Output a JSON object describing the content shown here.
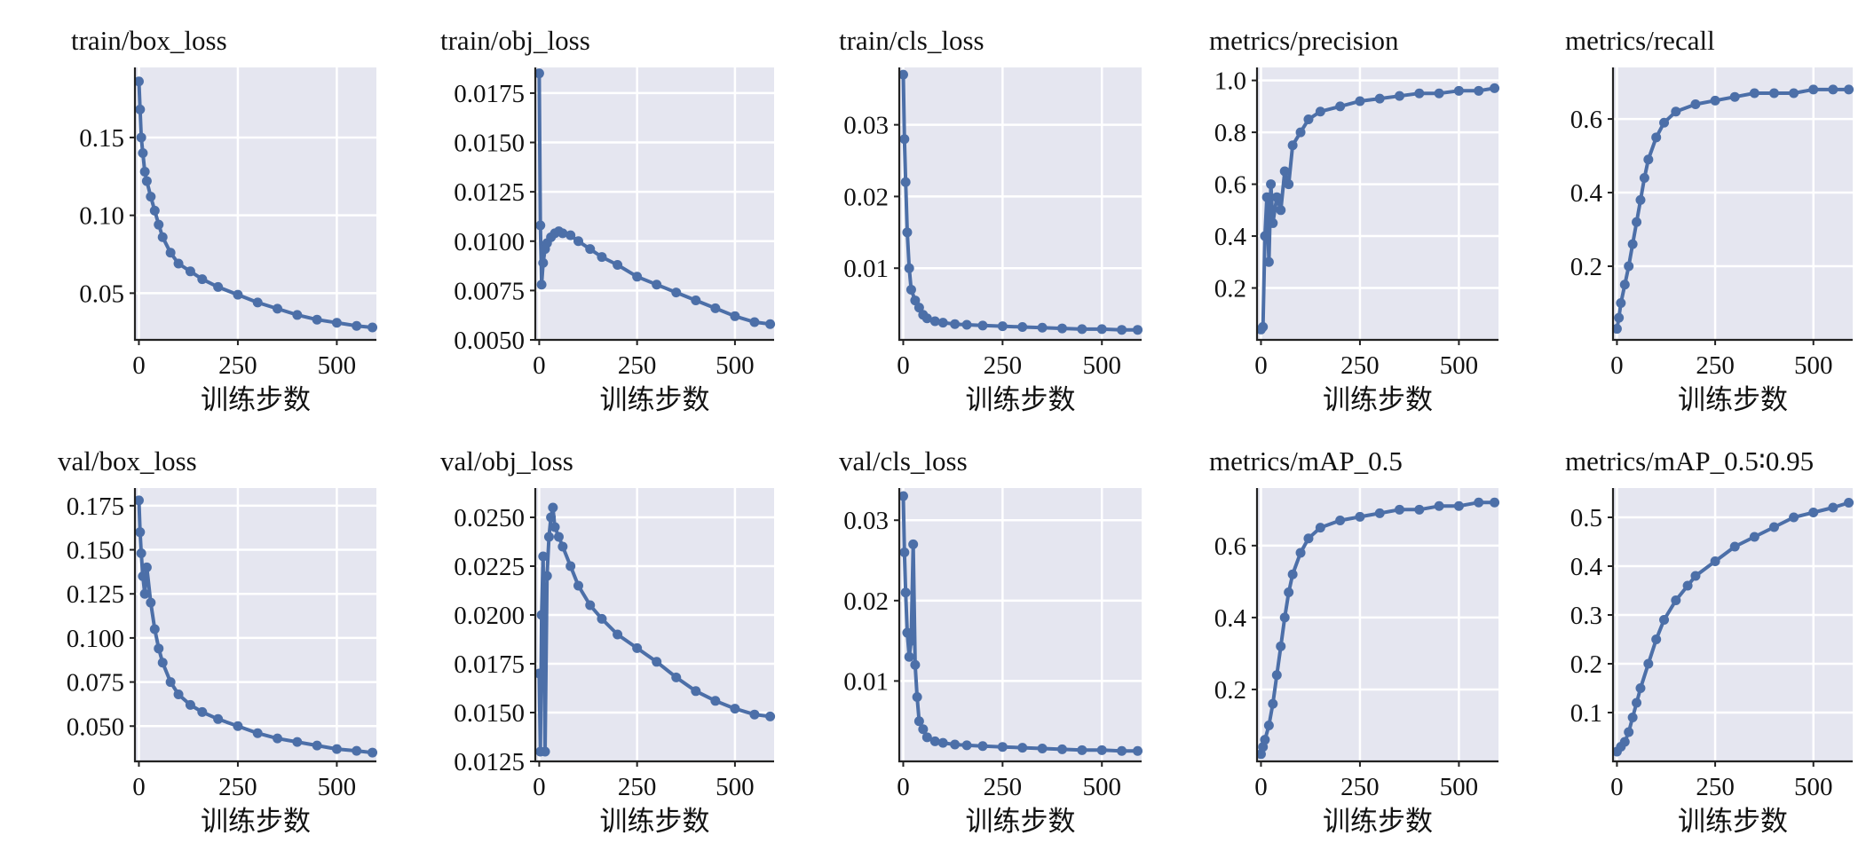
{
  "figure": {
    "series_color": "#4c6fa8",
    "plot_bg": "#e5e6f0",
    "grid_color": "#ffffff"
  },
  "chart_data": [
    {
      "type": "line",
      "title": "train/box_loss",
      "xlabel": "训练步数",
      "ylabel": "",
      "xlim": [
        -10,
        600
      ],
      "ylim": [
        0.02,
        0.195
      ],
      "xticks": [
        0,
        250,
        500
      ],
      "xtick_labels": [
        "0",
        "250",
        "500"
      ],
      "yticks": [
        0.05,
        0.1,
        0.15
      ],
      "ytick_labels": [
        "0.05",
        "0.10",
        "0.15"
      ],
      "grid": true,
      "series": [
        {
          "x": [
            0,
            3,
            6,
            10,
            15,
            20,
            30,
            40,
            50,
            60,
            80,
            100,
            130,
            160,
            200,
            250,
            300,
            350,
            400,
            450,
            500,
            550,
            590
          ],
          "y": [
            0.186,
            0.168,
            0.15,
            0.14,
            0.128,
            0.122,
            0.112,
            0.103,
            0.094,
            0.086,
            0.076,
            0.069,
            0.064,
            0.059,
            0.054,
            0.049,
            0.044,
            0.04,
            0.036,
            0.033,
            0.031,
            0.029,
            0.028
          ]
        }
      ]
    },
    {
      "type": "line",
      "title": "train/obj_loss",
      "xlabel": "训练步数",
      "ylabel": "",
      "xlim": [
        -10,
        600
      ],
      "ylim": [
        0.005,
        0.0188
      ],
      "xticks": [
        0,
        250,
        500
      ],
      "xtick_labels": [
        "0",
        "250",
        "500"
      ],
      "yticks": [
        0.005,
        0.0075,
        0.01,
        0.0125,
        0.015,
        0.0175
      ],
      "ytick_labels": [
        "0.0050",
        "0.0075",
        "0.0100",
        "0.0125",
        "0.0150",
        "0.0175"
      ],
      "grid": true,
      "series": [
        {
          "x": [
            0,
            3,
            6,
            10,
            15,
            20,
            30,
            40,
            50,
            60,
            80,
            100,
            130,
            160,
            200,
            250,
            300,
            350,
            400,
            450,
            500,
            550,
            590
          ],
          "y": [
            0.0185,
            0.0108,
            0.0078,
            0.0089,
            0.0096,
            0.0099,
            0.0102,
            0.0104,
            0.0105,
            0.0104,
            0.0103,
            0.01,
            0.0096,
            0.0092,
            0.0088,
            0.0082,
            0.0078,
            0.0074,
            0.007,
            0.0066,
            0.0062,
            0.0059,
            0.0058
          ]
        }
      ]
    },
    {
      "type": "line",
      "title": "train/cls_loss",
      "xlabel": "训练步数",
      "ylabel": "",
      "xlim": [
        -10,
        600
      ],
      "ylim": [
        0.0,
        0.038
      ],
      "xticks": [
        0,
        250,
        500
      ],
      "xtick_labels": [
        "0",
        "250",
        "500"
      ],
      "yticks": [
        0.01,
        0.02,
        0.03
      ],
      "ytick_labels": [
        "0.01",
        "0.02",
        "0.03"
      ],
      "grid": true,
      "series": [
        {
          "x": [
            0,
            3,
            6,
            10,
            15,
            20,
            30,
            40,
            50,
            60,
            80,
            100,
            130,
            160,
            200,
            250,
            300,
            350,
            400,
            450,
            500,
            550,
            590
          ],
          "y": [
            0.037,
            0.028,
            0.022,
            0.015,
            0.01,
            0.007,
            0.0055,
            0.0045,
            0.0035,
            0.003,
            0.0026,
            0.0024,
            0.0022,
            0.0021,
            0.002,
            0.0019,
            0.0018,
            0.0017,
            0.0016,
            0.0015,
            0.0015,
            0.0014,
            0.0014
          ]
        }
      ]
    },
    {
      "type": "line",
      "title": "metrics/precision",
      "xlabel": "训练步数",
      "ylabel": "",
      "xlim": [
        -10,
        600
      ],
      "ylim": [
        0.0,
        1.05
      ],
      "xticks": [
        0,
        250,
        500
      ],
      "xtick_labels": [
        "0",
        "250",
        "500"
      ],
      "yticks": [
        0.2,
        0.4,
        0.6,
        0.8,
        1.0
      ],
      "ytick_labels": [
        "0.2",
        "0.4",
        "0.6",
        "0.8",
        "1.0"
      ],
      "grid": true,
      "series": [
        {
          "x": [
            0,
            5,
            10,
            15,
            20,
            25,
            30,
            40,
            50,
            60,
            70,
            80,
            100,
            120,
            150,
            200,
            250,
            300,
            350,
            400,
            450,
            500,
            550,
            590
          ],
          "y": [
            0.04,
            0.05,
            0.4,
            0.55,
            0.3,
            0.6,
            0.45,
            0.55,
            0.5,
            0.65,
            0.6,
            0.75,
            0.8,
            0.85,
            0.88,
            0.9,
            0.92,
            0.93,
            0.94,
            0.95,
            0.95,
            0.96,
            0.96,
            0.97
          ]
        }
      ]
    },
    {
      "type": "line",
      "title": "metrics/recall",
      "xlabel": "训练步数",
      "ylabel": "",
      "xlim": [
        -10,
        600
      ],
      "ylim": [
        0.0,
        0.74
      ],
      "xticks": [
        0,
        250,
        500
      ],
      "xtick_labels": [
        "0",
        "250",
        "500"
      ],
      "yticks": [
        0.2,
        0.4,
        0.6
      ],
      "ytick_labels": [
        "0.2",
        "0.4",
        "0.6"
      ],
      "grid": true,
      "series": [
        {
          "x": [
            0,
            5,
            10,
            20,
            30,
            40,
            50,
            60,
            70,
            80,
            100,
            120,
            150,
            200,
            250,
            300,
            350,
            400,
            450,
            500,
            550,
            590
          ],
          "y": [
            0.03,
            0.06,
            0.1,
            0.15,
            0.2,
            0.26,
            0.32,
            0.38,
            0.44,
            0.49,
            0.55,
            0.59,
            0.62,
            0.64,
            0.65,
            0.66,
            0.67,
            0.67,
            0.67,
            0.68,
            0.68,
            0.68
          ]
        }
      ]
    },
    {
      "type": "line",
      "title": "val/box_loss",
      "xlabel": "训练步数",
      "ylabel": "",
      "xlim": [
        -10,
        600
      ],
      "ylim": [
        0.03,
        0.185
      ],
      "xticks": [
        0,
        250,
        500
      ],
      "xtick_labels": [
        "0",
        "250",
        "500"
      ],
      "yticks": [
        0.05,
        0.075,
        0.1,
        0.125,
        0.15,
        0.175
      ],
      "ytick_labels": [
        "0.050",
        "0.075",
        "0.100",
        "0.125",
        "0.150",
        "0.175"
      ],
      "grid": true,
      "series": [
        {
          "x": [
            0,
            3,
            6,
            10,
            15,
            20,
            30,
            40,
            50,
            60,
            80,
            100,
            130,
            160,
            200,
            250,
            300,
            350,
            400,
            450,
            500,
            550,
            590
          ],
          "y": [
            0.178,
            0.16,
            0.148,
            0.135,
            0.125,
            0.14,
            0.12,
            0.105,
            0.094,
            0.086,
            0.075,
            0.068,
            0.062,
            0.058,
            0.054,
            0.05,
            0.046,
            0.043,
            0.041,
            0.039,
            0.037,
            0.036,
            0.035
          ]
        }
      ]
    },
    {
      "type": "line",
      "title": "val/obj_loss",
      "xlabel": "训练步数",
      "ylabel": "",
      "xlim": [
        -10,
        600
      ],
      "ylim": [
        0.0125,
        0.0265
      ],
      "xticks": [
        0,
        250,
        500
      ],
      "xtick_labels": [
        "0",
        "250",
        "500"
      ],
      "yticks": [
        0.0125,
        0.015,
        0.0175,
        0.02,
        0.0225,
        0.025
      ],
      "ytick_labels": [
        "0.0125",
        "0.0150",
        "0.0175",
        "0.0200",
        "0.0225",
        "0.0250"
      ],
      "grid": true,
      "series": [
        {
          "x": [
            0,
            3,
            6,
            10,
            15,
            20,
            25,
            30,
            35,
            40,
            50,
            60,
            80,
            100,
            130,
            160,
            200,
            250,
            300,
            350,
            400,
            450,
            500,
            550,
            590
          ],
          "y": [
            0.017,
            0.013,
            0.02,
            0.023,
            0.013,
            0.022,
            0.024,
            0.025,
            0.0255,
            0.0245,
            0.024,
            0.0235,
            0.0225,
            0.0215,
            0.0205,
            0.0198,
            0.019,
            0.0183,
            0.0176,
            0.0168,
            0.0161,
            0.0156,
            0.0152,
            0.0149,
            0.0148
          ]
        }
      ]
    },
    {
      "type": "line",
      "title": "val/cls_loss",
      "xlabel": "训练步数",
      "ylabel": "",
      "xlim": [
        -10,
        600
      ],
      "ylim": [
        0.0,
        0.034
      ],
      "xticks": [
        0,
        250,
        500
      ],
      "xtick_labels": [
        "0",
        "250",
        "500"
      ],
      "yticks": [
        0.01,
        0.02,
        0.03
      ],
      "ytick_labels": [
        "0.01",
        "0.02",
        "0.03"
      ],
      "grid": true,
      "series": [
        {
          "x": [
            0,
            3,
            6,
            10,
            15,
            20,
            25,
            30,
            35,
            40,
            50,
            60,
            80,
            100,
            130,
            160,
            200,
            250,
            300,
            350,
            400,
            450,
            500,
            550,
            590
          ],
          "y": [
            0.033,
            0.026,
            0.021,
            0.016,
            0.013,
            0.015,
            0.027,
            0.012,
            0.008,
            0.005,
            0.004,
            0.003,
            0.0025,
            0.0023,
            0.0021,
            0.002,
            0.0019,
            0.0018,
            0.0017,
            0.0016,
            0.0015,
            0.0014,
            0.0014,
            0.0013,
            0.0013
          ]
        }
      ]
    },
    {
      "type": "line",
      "title": "metrics/mAP_0.5",
      "xlabel": "训练步数",
      "ylabel": "",
      "xlim": [
        -10,
        600
      ],
      "ylim": [
        0.0,
        0.76
      ],
      "xticks": [
        0,
        250,
        500
      ],
      "xtick_labels": [
        "0",
        "250",
        "500"
      ],
      "yticks": [
        0.2,
        0.4,
        0.6
      ],
      "ytick_labels": [
        "0.2",
        "0.4",
        "0.6"
      ],
      "grid": true,
      "series": [
        {
          "x": [
            0,
            5,
            10,
            20,
            30,
            40,
            50,
            60,
            70,
            80,
            100,
            120,
            150,
            200,
            250,
            300,
            350,
            400,
            450,
            500,
            550,
            590
          ],
          "y": [
            0.02,
            0.04,
            0.06,
            0.1,
            0.16,
            0.24,
            0.32,
            0.4,
            0.47,
            0.52,
            0.58,
            0.62,
            0.65,
            0.67,
            0.68,
            0.69,
            0.7,
            0.7,
            0.71,
            0.71,
            0.72,
            0.72
          ]
        }
      ]
    },
    {
      "type": "line",
      "title": "metrics/mAP_0.5∶0.95",
      "xlabel": "训练步数",
      "ylabel": "",
      "xlim": [
        -10,
        600
      ],
      "ylim": [
        0.0,
        0.56
      ],
      "xticks": [
        0,
        250,
        500
      ],
      "xtick_labels": [
        "0",
        "250",
        "500"
      ],
      "yticks": [
        0.1,
        0.2,
        0.3,
        0.4,
        0.5
      ],
      "ytick_labels": [
        "0.1",
        "0.2",
        "0.3",
        "0.4",
        "0.5"
      ],
      "grid": true,
      "series": [
        {
          "x": [
            0,
            10,
            20,
            30,
            40,
            50,
            60,
            80,
            100,
            120,
            150,
            180,
            200,
            250,
            300,
            350,
            400,
            450,
            500,
            550,
            590
          ],
          "y": [
            0.02,
            0.03,
            0.04,
            0.06,
            0.09,
            0.12,
            0.15,
            0.2,
            0.25,
            0.29,
            0.33,
            0.36,
            0.38,
            0.41,
            0.44,
            0.46,
            0.48,
            0.5,
            0.51,
            0.52,
            0.53
          ]
        }
      ]
    }
  ]
}
